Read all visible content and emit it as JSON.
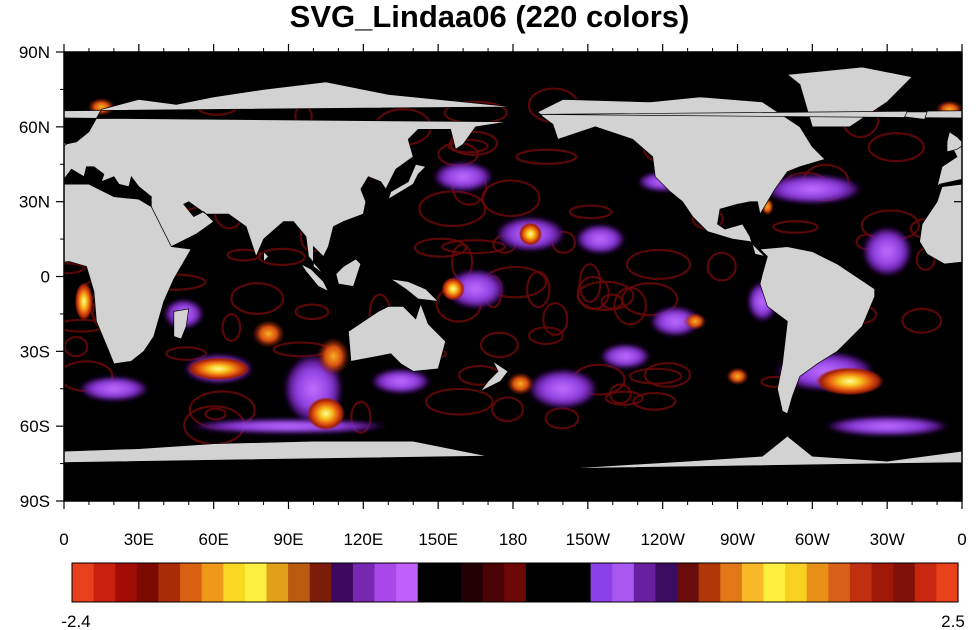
{
  "title": "SVG_Lindaa06 (220 colors)",
  "map": {
    "projection": "cylindrical-equidistant",
    "lon_range": [
      0,
      360
    ],
    "lat_range": [
      -90,
      90
    ],
    "land_color": "#d2d2d2",
    "field_background": "#000000"
  },
  "lat_ticks": [
    {
      "lat": 90,
      "label": "90N"
    },
    {
      "lat": 60,
      "label": "60N"
    },
    {
      "lat": 30,
      "label": "30N"
    },
    {
      "lat": 0,
      "label": "0"
    },
    {
      "lat": -30,
      "label": "30S"
    },
    {
      "lat": -60,
      "label": "60S"
    },
    {
      "lat": -90,
      "label": "90S"
    }
  ],
  "lon_ticks": [
    {
      "lon": 0,
      "label": "0"
    },
    {
      "lon": 30,
      "label": "30E"
    },
    {
      "lon": 60,
      "label": "60E"
    },
    {
      "lon": 90,
      "label": "90E"
    },
    {
      "lon": 120,
      "label": "120E"
    },
    {
      "lon": 150,
      "label": "150E"
    },
    {
      "lon": 180,
      "label": "180"
    },
    {
      "lon": 210,
      "label": "150W"
    },
    {
      "lon": 240,
      "label": "120W"
    },
    {
      "lon": 270,
      "label": "90W"
    },
    {
      "lon": 300,
      "label": "60W"
    },
    {
      "lon": 330,
      "label": "30W"
    },
    {
      "lon": 360,
      "label": "0"
    }
  ],
  "colorbar": {
    "min_label": "-2.4",
    "max_label": "2.5",
    "colors": [
      "#e8401c",
      "#c8200c",
      "#a00c04",
      "#7a0a02",
      "#a82c06",
      "#d86010",
      "#f09818",
      "#f8d820",
      "#fff040",
      "#e0a018",
      "#b85a10",
      "#7a1c08",
      "#3c0860",
      "#7828b0",
      "#a848e8",
      "#c060f8",
      "#000000",
      "#000000",
      "#200002",
      "#4a0204",
      "#6e0806",
      "#000000",
      "#000000",
      "#000000",
      "#8c40e8",
      "#a858f0",
      "#6820a0",
      "#3a0c60",
      "#6a0c0c",
      "#b03808",
      "#e07818",
      "#f8b828",
      "#fff040",
      "#f8d020",
      "#e89018",
      "#d86018",
      "#c03010",
      "#a01808",
      "#801008",
      "#c82810",
      "#e84018"
    ]
  },
  "hotspots": [
    {
      "lon": 62,
      "lat": -37,
      "rx": 11,
      "ry": 3,
      "level": 3
    },
    {
      "lon": 105,
      "lat": -55,
      "rx": 6,
      "ry": 5,
      "level": 3
    },
    {
      "lon": 82,
      "lat": -23,
      "rx": 5,
      "ry": 4,
      "level": 2
    },
    {
      "lon": 108,
      "lat": -32,
      "rx": 5,
      "ry": 6,
      "level": 2
    },
    {
      "lon": 156,
      "lat": -5,
      "rx": 3,
      "ry": 3,
      "level": 3
    },
    {
      "lon": 187,
      "lat": 17,
      "rx": 3,
      "ry": 3,
      "level": 3
    },
    {
      "lon": 270,
      "lat": -40,
      "rx": 3,
      "ry": 2,
      "level": 2
    },
    {
      "lon": 315,
      "lat": -42,
      "rx": 12,
      "ry": 4,
      "level": 3
    },
    {
      "lon": 253,
      "lat": -18,
      "rx": 3,
      "ry": 2,
      "level": 2
    },
    {
      "lon": 125,
      "lat": 42,
      "rx": 3,
      "ry": 2,
      "level": 2
    },
    {
      "lon": 108,
      "lat": 37,
      "rx": 2,
      "ry": 2,
      "level": 2
    },
    {
      "lon": 290,
      "lat": 45,
      "rx": 2,
      "ry": 2,
      "level": 2
    },
    {
      "lon": 282,
      "lat": 28,
      "rx": 1,
      "ry": 2,
      "level": 2
    },
    {
      "lon": 8,
      "lat": -10,
      "rx": 2,
      "ry": 6,
      "level": 3
    },
    {
      "lon": 183,
      "lat": -43,
      "rx": 4,
      "ry": 3,
      "level": 2
    },
    {
      "lon": 355,
      "lat": 67,
      "rx": 4,
      "ry": 2,
      "level": 2
    },
    {
      "lon": 15,
      "lat": 68,
      "rx": 4,
      "ry": 2,
      "level": 2
    }
  ],
  "purple_patches": [
    {
      "lon": 62,
      "lat": -37,
      "rx": 14,
      "ry": 6
    },
    {
      "lon": 100,
      "lat": -45,
      "rx": 12,
      "ry": 14
    },
    {
      "lon": 135,
      "lat": -42,
      "rx": 12,
      "ry": 5
    },
    {
      "lon": 187,
      "lat": 17,
      "rx": 14,
      "ry": 7
    },
    {
      "lon": 165,
      "lat": -5,
      "rx": 12,
      "ry": 8
    },
    {
      "lon": 215,
      "lat": 15,
      "rx": 10,
      "ry": 6
    },
    {
      "lon": 200,
      "lat": -45,
      "rx": 14,
      "ry": 8
    },
    {
      "lon": 245,
      "lat": -18,
      "rx": 10,
      "ry": 6
    },
    {
      "lon": 305,
      "lat": -38,
      "rx": 20,
      "ry": 8
    },
    {
      "lon": 300,
      "lat": 35,
      "rx": 20,
      "ry": 6
    },
    {
      "lon": 330,
      "lat": 10,
      "rx": 10,
      "ry": 10
    },
    {
      "lon": 48,
      "lat": -15,
      "rx": 8,
      "ry": 6
    },
    {
      "lon": 160,
      "lat": 40,
      "rx": 12,
      "ry": 6
    },
    {
      "lon": 240,
      "lat": 38,
      "rx": 10,
      "ry": 4
    },
    {
      "lon": 20,
      "lat": -45,
      "rx": 14,
      "ry": 5
    },
    {
      "lon": 90,
      "lat": -60,
      "rx": 40,
      "ry": 3
    },
    {
      "lon": 330,
      "lat": -60,
      "rx": 25,
      "ry": 4
    },
    {
      "lon": 225,
      "lat": -32,
      "rx": 10,
      "ry": 5
    },
    {
      "lon": 280,
      "lat": -10,
      "rx": 6,
      "ry": 8
    }
  ],
  "land": [
    {
      "name": "north-america",
      "pts": [
        [
          190,
          66
        ],
        [
          200,
          71
        ],
        [
          235,
          70
        ],
        [
          255,
          72
        ],
        [
          280,
          70
        ],
        [
          295,
          60
        ],
        [
          300,
          52
        ],
        [
          305,
          47
        ],
        [
          295,
          44
        ],
        [
          290,
          42
        ],
        [
          285,
          35
        ],
        [
          279,
          25
        ],
        [
          278,
          30
        ],
        [
          275,
          30
        ],
        [
          270,
          29
        ],
        [
          263,
          27
        ],
        [
          262,
          21
        ],
        [
          265,
          19
        ],
        [
          272,
          21
        ],
        [
          275,
          16
        ],
        [
          277,
          9
        ],
        [
          281,
          8
        ],
        [
          279,
          10
        ],
        [
          275,
          14
        ],
        [
          268,
          15
        ],
        [
          258,
          18
        ],
        [
          252,
          24
        ],
        [
          248,
          30
        ],
        [
          243,
          34
        ],
        [
          237,
          40
        ],
        [
          236,
          48
        ],
        [
          228,
          55
        ],
        [
          213,
          60
        ],
        [
          198,
          55
        ],
        [
          196,
          61
        ],
        [
          192,
          64
        ]
      ]
    },
    {
      "name": "greenland",
      "pts": [
        [
          300,
          60
        ],
        [
          315,
          60
        ],
        [
          330,
          70
        ],
        [
          340,
          80
        ],
        [
          320,
          84
        ],
        [
          290,
          81
        ],
        [
          295,
          77
        ]
      ]
    },
    {
      "name": "south-america",
      "pts": [
        [
          279,
          11
        ],
        [
          290,
          12
        ],
        [
          300,
          10
        ],
        [
          310,
          5
        ],
        [
          325,
          -5
        ],
        [
          325,
          -8
        ],
        [
          320,
          -20
        ],
        [
          315,
          -25
        ],
        [
          310,
          -30
        ],
        [
          302,
          -35
        ],
        [
          295,
          -40
        ],
        [
          292,
          -48
        ],
        [
          290,
          -55
        ],
        [
          288,
          -54
        ],
        [
          286,
          -45
        ],
        [
          288,
          -35
        ],
        [
          290,
          -18
        ],
        [
          282,
          -12
        ],
        [
          279,
          -3
        ],
        [
          280,
          1
        ],
        [
          282,
          8
        ]
      ]
    },
    {
      "name": "europe-asia",
      "pts": [
        [
          350,
          36
        ],
        [
          352,
          44
        ],
        [
          358,
          48
        ],
        [
          356,
          52
        ],
        [
          5,
          54
        ],
        [
          10,
          58
        ],
        [
          15,
          67
        ],
        [
          30,
          71
        ],
        [
          45,
          69
        ],
        [
          60,
          72
        ],
        [
          80,
          75
        ],
        [
          105,
          78
        ],
        [
          130,
          73
        ],
        [
          160,
          70
        ],
        [
          180,
          68
        ],
        [
          190,
          65
        ],
        [
          178,
          62
        ],
        [
          165,
          60
        ],
        [
          160,
          53
        ],
        [
          157,
          51
        ],
        [
          155,
          59
        ],
        [
          142,
          59
        ],
        [
          138,
          55
        ],
        [
          140,
          48
        ],
        [
          133,
          43
        ],
        [
          129,
          35
        ],
        [
          127,
          38
        ],
        [
          122,
          40
        ],
        [
          119,
          35
        ],
        [
          121,
          30
        ],
        [
          120,
          25
        ],
        [
          112,
          22
        ],
        [
          108,
          20
        ],
        [
          106,
          12
        ],
        [
          104,
          8
        ],
        [
          100,
          12
        ],
        [
          100,
          4
        ],
        [
          104,
          1
        ],
        [
          98,
          8
        ],
        [
          97,
          16
        ],
        [
          92,
          22
        ],
        [
          88,
          22
        ],
        [
          80,
          15
        ],
        [
          77,
          8
        ],
        [
          73,
          20
        ],
        [
          66,
          25
        ],
        [
          57,
          25
        ],
        [
          50,
          30
        ],
        [
          48,
          29
        ],
        [
          52,
          24
        ],
        [
          56,
          26
        ],
        [
          60,
          22
        ],
        [
          53,
          17
        ],
        [
          45,
          13
        ],
        [
          43,
          12
        ],
        [
          40,
          18
        ],
        [
          35,
          28
        ],
        [
          35,
          32
        ],
        [
          30,
          36
        ],
        [
          27,
          40
        ],
        [
          26,
          36
        ],
        [
          22,
          37
        ],
        [
          20,
          40
        ],
        [
          15,
          38
        ],
        [
          16,
          41
        ],
        [
          12,
          44
        ],
        [
          9,
          44
        ],
        [
          8,
          40
        ],
        [
          3,
          43
        ],
        [
          0,
          39
        ],
        [
          351,
          37
        ]
      ]
    },
    {
      "name": "africa",
      "pts": [
        [
          352,
          36
        ],
        [
          0,
          37
        ],
        [
          10,
          37
        ],
        [
          20,
          32
        ],
        [
          30,
          31
        ],
        [
          35,
          28
        ],
        [
          43,
          12
        ],
        [
          51,
          11
        ],
        [
          44,
          -1
        ],
        [
          40,
          -10
        ],
        [
          36,
          -24
        ],
        [
          32,
          -30
        ],
        [
          27,
          -34
        ],
        [
          20,
          -35
        ],
        [
          18,
          -30
        ],
        [
          13,
          -18
        ],
        [
          12,
          -6
        ],
        [
          9,
          4
        ],
        [
          2,
          6
        ],
        [
          353,
          5
        ],
        [
          346,
          9
        ],
        [
          343,
          14
        ],
        [
          344,
          21
        ],
        [
          350,
          30
        ]
      ]
    },
    {
      "name": "australia",
      "pts": [
        [
          114,
          -22
        ],
        [
          120,
          -18
        ],
        [
          126,
          -14
        ],
        [
          130,
          -12
        ],
        [
          136,
          -12
        ],
        [
          141,
          -17
        ],
        [
          143,
          -11
        ],
        [
          146,
          -19
        ],
        [
          153,
          -26
        ],
        [
          150,
          -37
        ],
        [
          140,
          -38
        ],
        [
          135,
          -35
        ],
        [
          131,
          -31
        ],
        [
          115,
          -34
        ]
      ]
    },
    {
      "name": "antarctica",
      "pts": [
        [
          0,
          -90
        ],
        [
          360,
          -90
        ],
        [
          360,
          -70
        ],
        [
          330,
          -74
        ],
        [
          300,
          -72
        ],
        [
          290,
          -64
        ],
        [
          280,
          -72
        ],
        [
          250,
          -74
        ],
        [
          200,
          -77
        ],
        [
          170,
          -72
        ],
        [
          140,
          -66
        ],
        [
          100,
          -66
        ],
        [
          60,
          -67
        ],
        [
          30,
          -69
        ],
        [
          0,
          -70
        ]
      ]
    },
    {
      "name": "madagascar",
      "pts": [
        [
          44,
          -14
        ],
        [
          50,
          -13
        ],
        [
          49,
          -20
        ],
        [
          47,
          -25
        ],
        [
          44,
          -24
        ]
      ]
    },
    {
      "name": "japan",
      "pts": [
        [
          130,
          31
        ],
        [
          135,
          34
        ],
        [
          140,
          37
        ],
        [
          142,
          41
        ],
        [
          145,
          44
        ],
        [
          141,
          45
        ],
        [
          138,
          38
        ],
        [
          131,
          34
        ]
      ]
    },
    {
      "name": "new-zealand",
      "pts": [
        [
          172,
          -34
        ],
        [
          178,
          -38
        ],
        [
          175,
          -42
        ],
        [
          171,
          -44
        ],
        [
          167,
          -46
        ],
        [
          170,
          -42
        ],
        [
          174,
          -38
        ]
      ]
    },
    {
      "name": "new-guinea",
      "pts": [
        [
          131,
          -1
        ],
        [
          138,
          -2
        ],
        [
          145,
          -5
        ],
        [
          150,
          -10
        ],
        [
          142,
          -9
        ],
        [
          137,
          -5
        ]
      ]
    },
    {
      "name": "borneo",
      "pts": [
        [
          109,
          1
        ],
        [
          112,
          4
        ],
        [
          117,
          7
        ],
        [
          119,
          5
        ],
        [
          116,
          -4
        ],
        [
          110,
          -3
        ]
      ]
    },
    {
      "name": "sumatra",
      "pts": [
        [
          95,
          5
        ],
        [
          99,
          3
        ],
        [
          104,
          -2
        ],
        [
          106,
          -6
        ],
        [
          102,
          -4
        ],
        [
          97,
          2
        ]
      ]
    },
    {
      "name": "uk",
      "pts": [
        [
          354,
          50
        ],
        [
          358,
          51
        ],
        [
          1,
          53
        ],
        [
          358,
          56
        ],
        [
          355,
          58
        ],
        [
          354,
          54
        ]
      ]
    },
    {
      "name": "iceland",
      "pts": [
        [
          337,
          64
        ],
        [
          345,
          63
        ],
        [
          346,
          66
        ],
        [
          338,
          66
        ]
      ]
    },
    {
      "name": "sri-lanka",
      "pts": [
        [
          80,
          6
        ],
        [
          82,
          8
        ],
        [
          80,
          10
        ]
      ]
    }
  ]
}
